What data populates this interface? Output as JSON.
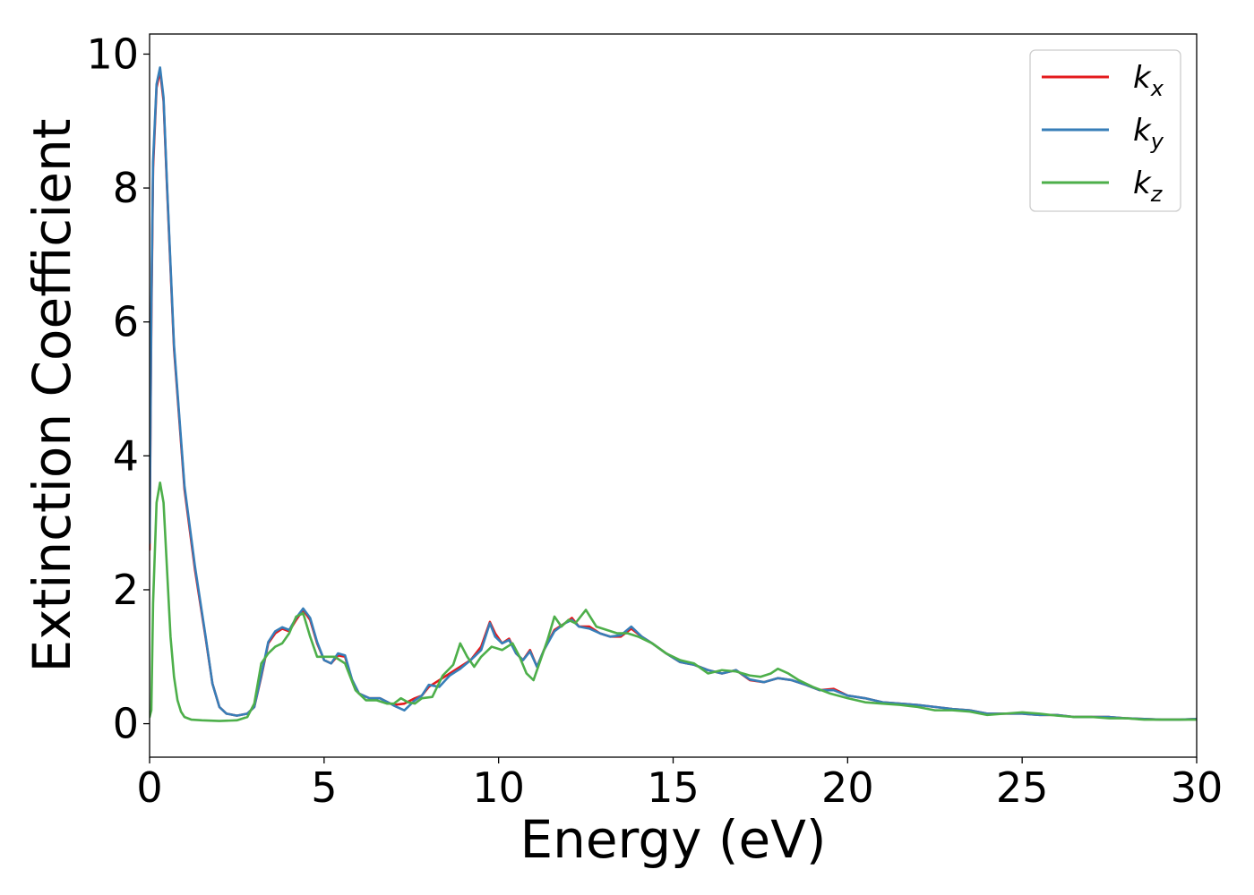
{
  "chart_data": {
    "type": "line",
    "xlabel": "Energy (eV)",
    "ylabel": "Extinction Coefficient",
    "xlim": [
      0,
      30
    ],
    "ylim": [
      -0.5,
      10.3
    ],
    "xticks": [
      "0",
      "5",
      "10",
      "15",
      "20",
      "25",
      "30"
    ],
    "yticks": [
      "0",
      "2",
      "4",
      "6",
      "8",
      "10"
    ],
    "grid": false,
    "legend_position": "top-right",
    "series": [
      {
        "name": "k_x",
        "label_base": "k",
        "label_sub": "x",
        "color": "#e41a1c",
        "x": [
          0.0,
          0.05,
          0.1,
          0.2,
          0.3,
          0.4,
          0.5,
          0.7,
          1.0,
          1.3,
          1.6,
          1.8,
          2.0,
          2.2,
          2.5,
          2.8,
          3.0,
          3.2,
          3.4,
          3.6,
          3.8,
          4.0,
          4.2,
          4.4,
          4.6,
          4.8,
          5.0,
          5.2,
          5.4,
          5.6,
          5.8,
          6.0,
          6.3,
          6.6,
          6.9,
          7.0,
          7.3,
          7.6,
          7.8,
          8.0,
          8.3,
          8.6,
          8.9,
          9.2,
          9.5,
          9.75,
          9.9,
          10.1,
          10.3,
          10.5,
          10.7,
          10.9,
          11.1,
          11.3,
          11.6,
          11.9,
          12.1,
          12.3,
          12.6,
          12.9,
          13.2,
          13.5,
          13.8,
          14.1,
          14.4,
          14.8,
          15.2,
          15.6,
          16.0,
          16.4,
          16.8,
          17.2,
          17.6,
          18.0,
          18.4,
          18.8,
          19.2,
          19.6,
          20.0,
          20.5,
          21.0,
          21.5,
          22.0,
          22.5,
          23.0,
          23.5,
          24.0,
          24.5,
          25.0,
          25.5,
          26.0,
          26.5,
          27.0,
          27.5,
          28.0,
          28.5,
          29.0,
          29.5,
          30.0
        ],
        "y": [
          2.6,
          6.0,
          8.3,
          9.5,
          9.75,
          9.3,
          8.0,
          5.6,
          3.5,
          2.3,
          1.3,
          0.6,
          0.25,
          0.15,
          0.12,
          0.15,
          0.25,
          0.7,
          1.2,
          1.35,
          1.42,
          1.38,
          1.55,
          1.7,
          1.55,
          1.2,
          0.95,
          0.9,
          1.02,
          1.0,
          0.65,
          0.45,
          0.38,
          0.38,
          0.3,
          0.28,
          0.3,
          0.38,
          0.42,
          0.55,
          0.65,
          0.75,
          0.85,
          0.95,
          1.15,
          1.52,
          1.35,
          1.2,
          1.27,
          1.05,
          0.95,
          1.1,
          0.85,
          1.1,
          1.4,
          1.5,
          1.58,
          1.45,
          1.45,
          1.35,
          1.3,
          1.3,
          1.42,
          1.3,
          1.2,
          1.05,
          0.92,
          0.88,
          0.8,
          0.75,
          0.8,
          0.65,
          0.62,
          0.68,
          0.65,
          0.58,
          0.5,
          0.52,
          0.42,
          0.38,
          0.32,
          0.3,
          0.28,
          0.25,
          0.22,
          0.2,
          0.15,
          0.15,
          0.15,
          0.13,
          0.13,
          0.1,
          0.1,
          0.1,
          0.08,
          0.07,
          0.06,
          0.06,
          0.07
        ]
      },
      {
        "name": "k_y",
        "label_base": "k",
        "label_sub": "y",
        "color": "#377eb8",
        "x": [
          0.0,
          0.05,
          0.1,
          0.2,
          0.3,
          0.4,
          0.5,
          0.7,
          1.0,
          1.3,
          1.6,
          1.8,
          2.0,
          2.2,
          2.5,
          2.8,
          3.0,
          3.2,
          3.4,
          3.6,
          3.8,
          4.0,
          4.2,
          4.4,
          4.6,
          4.8,
          5.0,
          5.2,
          5.4,
          5.6,
          5.8,
          6.0,
          6.3,
          6.6,
          6.9,
          7.0,
          7.3,
          7.6,
          7.8,
          8.0,
          8.3,
          8.6,
          8.9,
          9.2,
          9.5,
          9.75,
          9.9,
          10.1,
          10.3,
          10.5,
          10.7,
          10.9,
          11.1,
          11.3,
          11.6,
          11.9,
          12.1,
          12.3,
          12.6,
          12.9,
          13.2,
          13.5,
          13.8,
          14.1,
          14.4,
          14.8,
          15.2,
          15.6,
          16.0,
          16.4,
          16.8,
          17.2,
          17.6,
          18.0,
          18.4,
          18.8,
          19.2,
          19.6,
          20.0,
          20.5,
          21.0,
          21.5,
          22.0,
          22.5,
          23.0,
          23.5,
          24.0,
          24.5,
          25.0,
          25.5,
          26.0,
          26.5,
          27.0,
          27.5,
          28.0,
          28.5,
          29.0,
          29.5,
          30.0
        ],
        "y": [
          2.7,
          6.2,
          8.4,
          9.55,
          9.8,
          9.35,
          8.05,
          5.65,
          3.55,
          2.35,
          1.32,
          0.6,
          0.25,
          0.15,
          0.12,
          0.15,
          0.25,
          0.72,
          1.22,
          1.38,
          1.44,
          1.4,
          1.58,
          1.72,
          1.58,
          1.22,
          0.95,
          0.9,
          1.05,
          1.02,
          0.66,
          0.45,
          0.38,
          0.38,
          0.3,
          0.27,
          0.2,
          0.35,
          0.42,
          0.58,
          0.55,
          0.72,
          0.82,
          0.95,
          1.1,
          1.5,
          1.3,
          1.2,
          1.25,
          1.05,
          0.95,
          1.08,
          0.85,
          1.1,
          1.38,
          1.5,
          1.55,
          1.45,
          1.42,
          1.35,
          1.3,
          1.32,
          1.45,
          1.3,
          1.2,
          1.05,
          0.92,
          0.88,
          0.8,
          0.75,
          0.8,
          0.66,
          0.62,
          0.68,
          0.65,
          0.58,
          0.5,
          0.5,
          0.42,
          0.38,
          0.32,
          0.3,
          0.28,
          0.25,
          0.22,
          0.2,
          0.15,
          0.15,
          0.15,
          0.13,
          0.13,
          0.1,
          0.1,
          0.1,
          0.08,
          0.07,
          0.06,
          0.06,
          0.07
        ]
      },
      {
        "name": "k_z",
        "label_base": "k",
        "label_sub": "z",
        "color": "#4daf4a",
        "x": [
          0.0,
          0.05,
          0.1,
          0.2,
          0.3,
          0.4,
          0.5,
          0.6,
          0.7,
          0.8,
          0.9,
          1.0,
          1.2,
          1.5,
          2.0,
          2.5,
          2.8,
          3.0,
          3.2,
          3.4,
          3.6,
          3.8,
          4.0,
          4.2,
          4.4,
          4.6,
          4.8,
          5.0,
          5.3,
          5.6,
          5.9,
          6.2,
          6.5,
          6.8,
          7.0,
          7.2,
          7.4,
          7.6,
          7.8,
          8.1,
          8.4,
          8.7,
          8.9,
          9.1,
          9.3,
          9.5,
          9.8,
          10.1,
          10.4,
          10.6,
          10.8,
          11.0,
          11.2,
          11.4,
          11.6,
          11.8,
          12.0,
          12.2,
          12.5,
          12.8,
          13.1,
          13.4,
          13.7,
          14.0,
          14.4,
          14.8,
          15.2,
          15.6,
          16.0,
          16.4,
          16.8,
          17.2,
          17.5,
          17.8,
          18.0,
          18.3,
          18.6,
          19.0,
          19.5,
          20.0,
          20.5,
          21.0,
          21.5,
          22.0,
          22.5,
          23.0,
          23.5,
          24.0,
          24.5,
          25.0,
          25.5,
          26.0,
          26.5,
          27.0,
          27.5,
          28.0,
          28.5,
          29.0,
          29.5,
          30.0
        ],
        "y": [
          0.1,
          0.2,
          1.8,
          3.3,
          3.6,
          3.3,
          2.3,
          1.3,
          0.7,
          0.35,
          0.18,
          0.1,
          0.06,
          0.05,
          0.04,
          0.05,
          0.1,
          0.3,
          0.9,
          1.05,
          1.15,
          1.2,
          1.35,
          1.6,
          1.65,
          1.3,
          1.0,
          1.0,
          1.0,
          0.9,
          0.5,
          0.35,
          0.35,
          0.3,
          0.3,
          0.38,
          0.32,
          0.3,
          0.38,
          0.4,
          0.72,
          0.88,
          1.2,
          1.0,
          0.85,
          1.0,
          1.15,
          1.1,
          1.2,
          1.0,
          0.75,
          0.65,
          0.95,
          1.25,
          1.6,
          1.45,
          1.55,
          1.5,
          1.7,
          1.45,
          1.4,
          1.35,
          1.35,
          1.3,
          1.2,
          1.05,
          0.95,
          0.9,
          0.75,
          0.8,
          0.78,
          0.72,
          0.7,
          0.75,
          0.82,
          0.75,
          0.65,
          0.55,
          0.45,
          0.38,
          0.32,
          0.3,
          0.28,
          0.25,
          0.2,
          0.2,
          0.18,
          0.13,
          0.15,
          0.17,
          0.15,
          0.12,
          0.1,
          0.1,
          0.08,
          0.08,
          0.06,
          0.06,
          0.06,
          0.06
        ]
      }
    ]
  }
}
